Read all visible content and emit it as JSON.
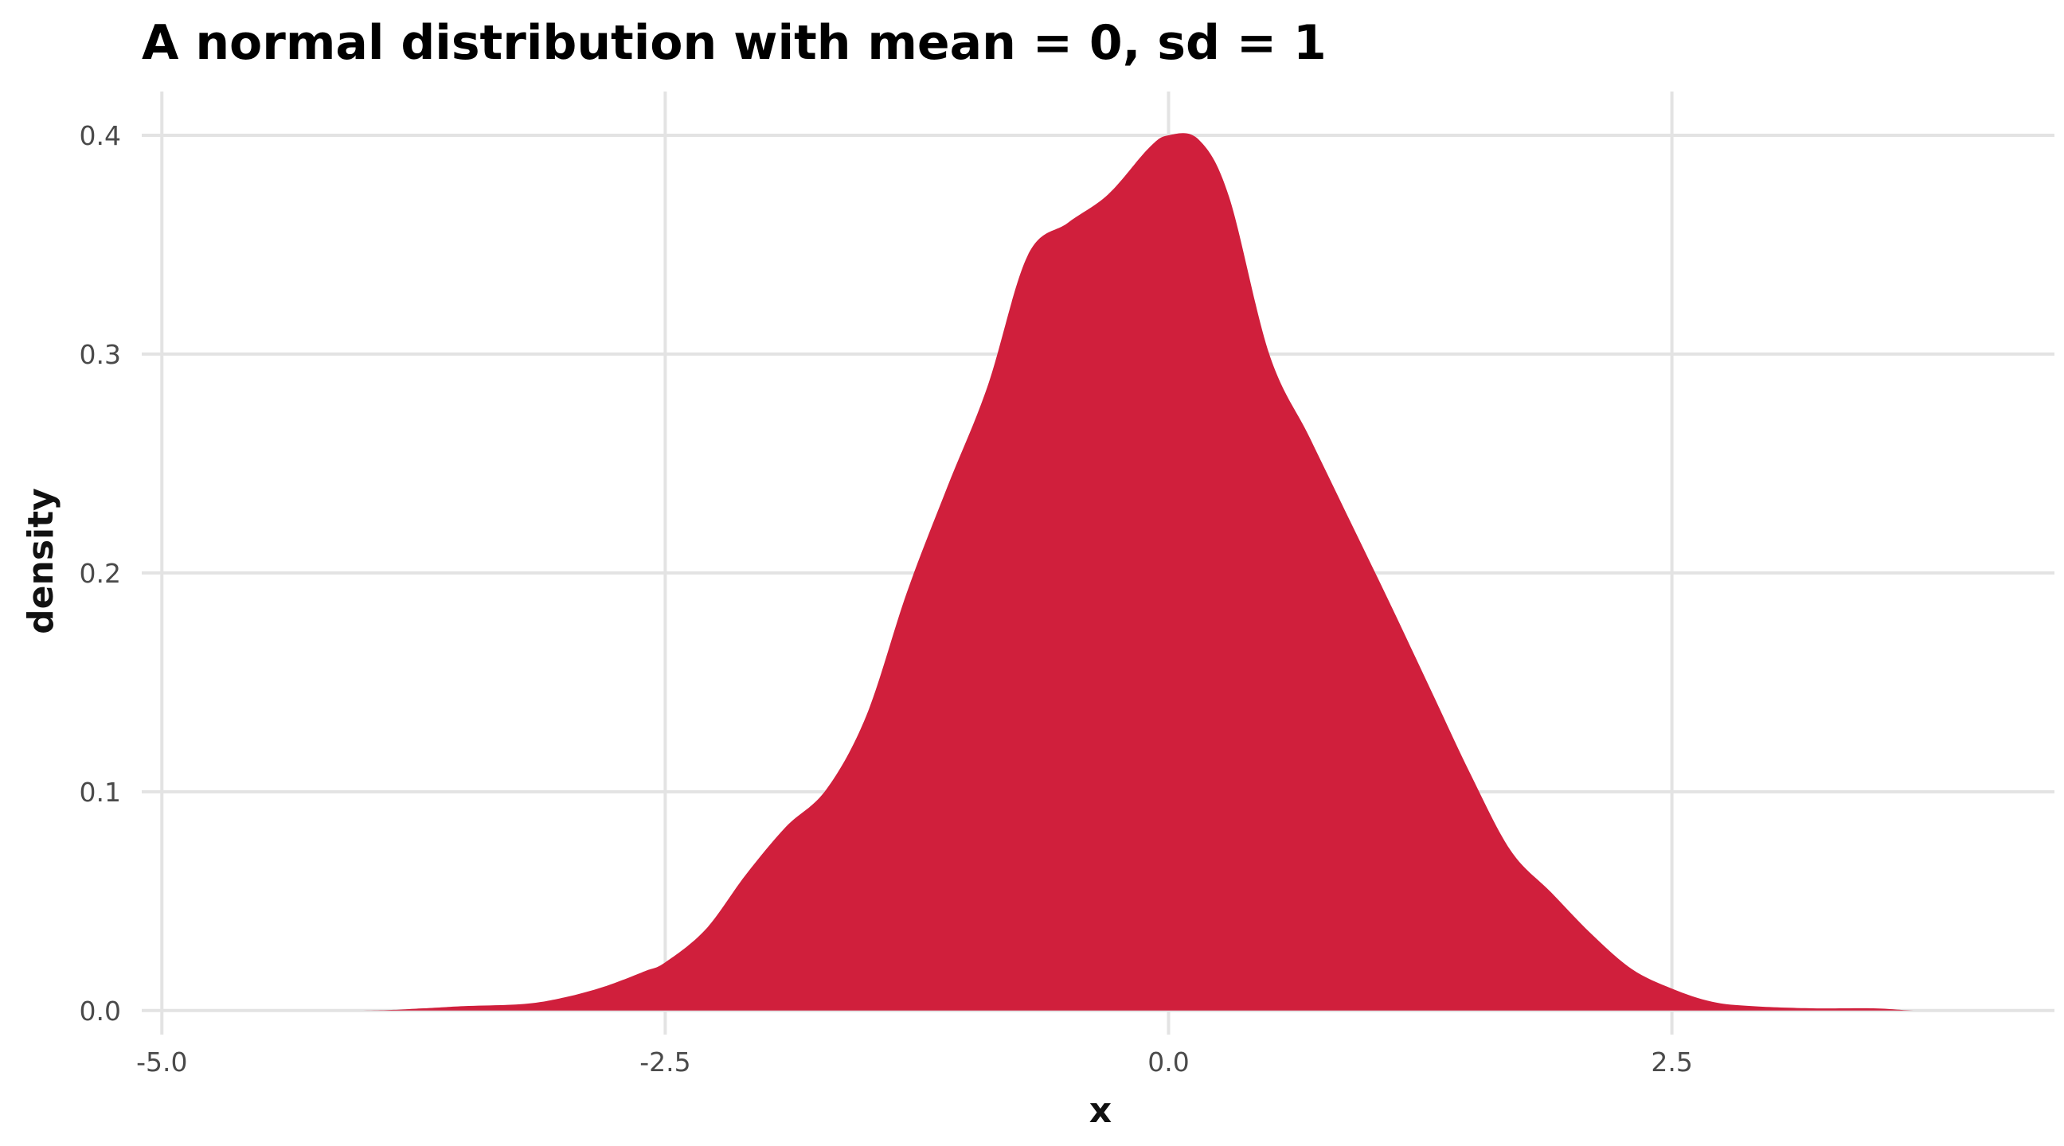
{
  "chart_data": {
    "type": "area",
    "title": "A normal distribution with mean = 0, sd = 1",
    "xlabel": "x",
    "ylabel": "density",
    "xlim": [
      -5.1,
      4.4
    ],
    "ylim": [
      -0.011,
      0.42
    ],
    "x_ticks": [
      -5.0,
      -2.5,
      0.0,
      2.5
    ],
    "x_tick_labels": [
      "-5.0",
      "-2.5",
      "0.0",
      "2.5"
    ],
    "y_ticks": [
      0.0,
      0.1,
      0.2,
      0.3,
      0.4
    ],
    "y_tick_labels": [
      "0.0",
      "0.1",
      "0.2",
      "0.3",
      "0.4"
    ],
    "grid": true,
    "legend": "none",
    "fill_color": "#d01f3c",
    "series": [
      {
        "x": [
          -4.8,
          -4.0,
          -3.7,
          -3.5,
          -3.2,
          -3.0,
          -2.8,
          -2.6,
          -2.5,
          -2.3,
          -2.1,
          -1.9,
          -1.7,
          -1.5,
          -1.3,
          -1.1,
          -0.9,
          -0.7,
          -0.5,
          -0.3,
          -0.1,
          0.0,
          0.15,
          0.3,
          0.5,
          0.7,
          0.9,
          1.1,
          1.3,
          1.5,
          1.7,
          1.9,
          2.1,
          2.3,
          2.5,
          2.7,
          2.9,
          3.2,
          3.5,
          3.7,
          3.9
        ],
        "y": [
          0.0,
          0.0,
          0.001,
          0.002,
          0.003,
          0.006,
          0.011,
          0.018,
          0.022,
          0.037,
          0.062,
          0.084,
          0.101,
          0.135,
          0.191,
          0.239,
          0.285,
          0.345,
          0.36,
          0.373,
          0.394,
          0.4,
          0.398,
          0.372,
          0.3,
          0.262,
          0.224,
          0.186,
          0.147,
          0.108,
          0.073,
          0.054,
          0.035,
          0.019,
          0.01,
          0.004,
          0.002,
          0.001,
          0.001,
          0.0,
          0.0
        ]
      }
    ]
  }
}
